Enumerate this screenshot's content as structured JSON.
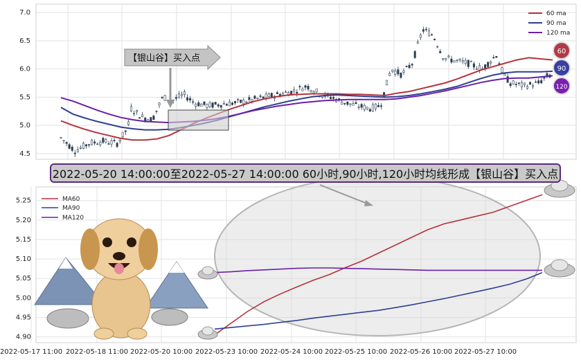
{
  "banner": {
    "text": "2022-05-20 14:00:00至2022-05-27 14:00:00 60小时,90小时,120小时均线形成【银山谷】买入点"
  },
  "arrow_label": "【银山谷】买入点",
  "badges": [
    "60",
    "90",
    "120"
  ],
  "colors": {
    "ma60": "#b5323c",
    "ma90": "#2e3f8f",
    "ma120": "#6a1fa8",
    "candle": "#2c3e50",
    "badge60": "#b03a48",
    "badge90": "#3a3fa0",
    "badge120": "#7a1fb0"
  },
  "chart_data": [
    {
      "type": "line",
      "name": "top-price-chart",
      "ylim": [
        4.4,
        7.15
      ],
      "yticks": [
        "4.5",
        "5.0",
        "5.5",
        "6.0",
        "6.5",
        "7.0"
      ],
      "ytick_values": [
        4.5,
        5.0,
        5.5,
        6.0,
        6.5,
        7.0
      ],
      "legend": {
        "position": "top-right",
        "entries": [
          "60 ma",
          "90 ma",
          "120 ma"
        ]
      },
      "grid": true,
      "series": [
        {
          "name": "60 ma",
          "values": [
            5.08,
            5.0,
            4.93,
            4.87,
            4.82,
            4.77,
            4.74,
            4.74,
            4.76,
            4.82,
            4.92,
            5.03,
            5.12,
            5.2,
            5.28,
            5.35,
            5.42,
            5.47,
            5.51,
            5.54,
            5.55,
            5.56,
            5.56,
            5.56,
            5.55,
            5.55,
            5.54,
            5.53,
            5.57,
            5.6,
            5.65,
            5.7,
            5.75,
            5.82,
            5.9,
            5.98,
            6.04,
            6.1,
            6.16,
            6.2,
            6.18,
            6.16
          ]
        },
        {
          "name": "90 ma",
          "values": [
            5.32,
            5.2,
            5.13,
            5.07,
            5.02,
            4.97,
            4.94,
            4.92,
            4.92,
            4.93,
            4.96,
            5.0,
            5.04,
            5.09,
            5.15,
            5.21,
            5.27,
            5.33,
            5.38,
            5.43,
            5.47,
            5.51,
            5.53,
            5.54,
            5.53,
            5.52,
            5.51,
            5.5,
            5.51,
            5.53,
            5.56,
            5.6,
            5.64,
            5.69,
            5.76,
            5.83,
            5.89,
            5.93,
            5.95,
            5.95,
            5.95,
            5.96
          ]
        },
        {
          "name": "120 ma",
          "values": [
            5.49,
            5.43,
            5.35,
            5.27,
            5.2,
            5.14,
            5.1,
            5.07,
            5.06,
            5.05,
            5.06,
            5.07,
            5.09,
            5.12,
            5.16,
            5.21,
            5.26,
            5.3,
            5.34,
            5.37,
            5.4,
            5.42,
            5.44,
            5.45,
            5.46,
            5.46,
            5.46,
            5.46,
            5.47,
            5.5,
            5.53,
            5.57,
            5.61,
            5.66,
            5.71,
            5.76,
            5.8,
            5.83,
            5.84,
            5.84,
            5.86,
            5.88
          ]
        }
      ]
    },
    {
      "type": "line",
      "name": "bottom-ma-chart",
      "ylim": [
        4.885,
        5.285
      ],
      "yticks": [
        "4.90",
        "4.95",
        "5.00",
        "5.05",
        "5.10",
        "5.15",
        "5.20",
        "5.25"
      ],
      "ytick_values": [
        4.9,
        4.95,
        5.0,
        5.05,
        5.1,
        5.15,
        5.2,
        5.25
      ],
      "x_tick_labels": [
        "2022-05-17 11:00",
        "2022-05-18 11:00",
        "2022-05-20 10:00",
        "2022-05-23 10:00",
        "2022-05-24 10:00",
        "2022-05-25 10:00",
        "2022-05-26 10:00",
        "2022-05-27 10:00"
      ],
      "legend": {
        "position": "top-left",
        "entries": [
          "MA60",
          "MA90",
          "MA120"
        ]
      },
      "grid": true,
      "x": [
        0,
        1,
        2,
        3,
        4,
        5,
        6,
        7,
        8,
        9,
        10,
        11,
        12,
        13,
        14,
        15,
        16,
        17,
        18,
        19,
        20
      ],
      "series": [
        {
          "name": "MA60",
          "values": [
            4.905,
            4.935,
            4.965,
            4.99,
            5.01,
            5.028,
            5.045,
            5.06,
            5.078,
            5.095,
            5.115,
            5.135,
            5.155,
            5.175,
            5.19,
            5.2,
            5.21,
            5.22,
            5.235,
            5.25,
            5.265
          ]
        },
        {
          "name": "MA90",
          "values": [
            4.92,
            4.924,
            4.928,
            4.932,
            4.937,
            4.942,
            4.948,
            4.953,
            4.958,
            4.963,
            4.968,
            4.975,
            4.982,
            4.99,
            4.998,
            5.007,
            5.016,
            5.025,
            5.035,
            5.048,
            5.065
          ]
        },
        {
          "name": "MA120",
          "values": [
            5.065,
            5.067,
            5.07,
            5.072,
            5.074,
            5.076,
            5.077,
            5.077,
            5.076,
            5.075,
            5.074,
            5.073,
            5.072,
            5.071,
            5.071,
            5.071,
            5.071,
            5.071,
            5.071,
            5.071,
            5.071
          ]
        }
      ]
    }
  ]
}
